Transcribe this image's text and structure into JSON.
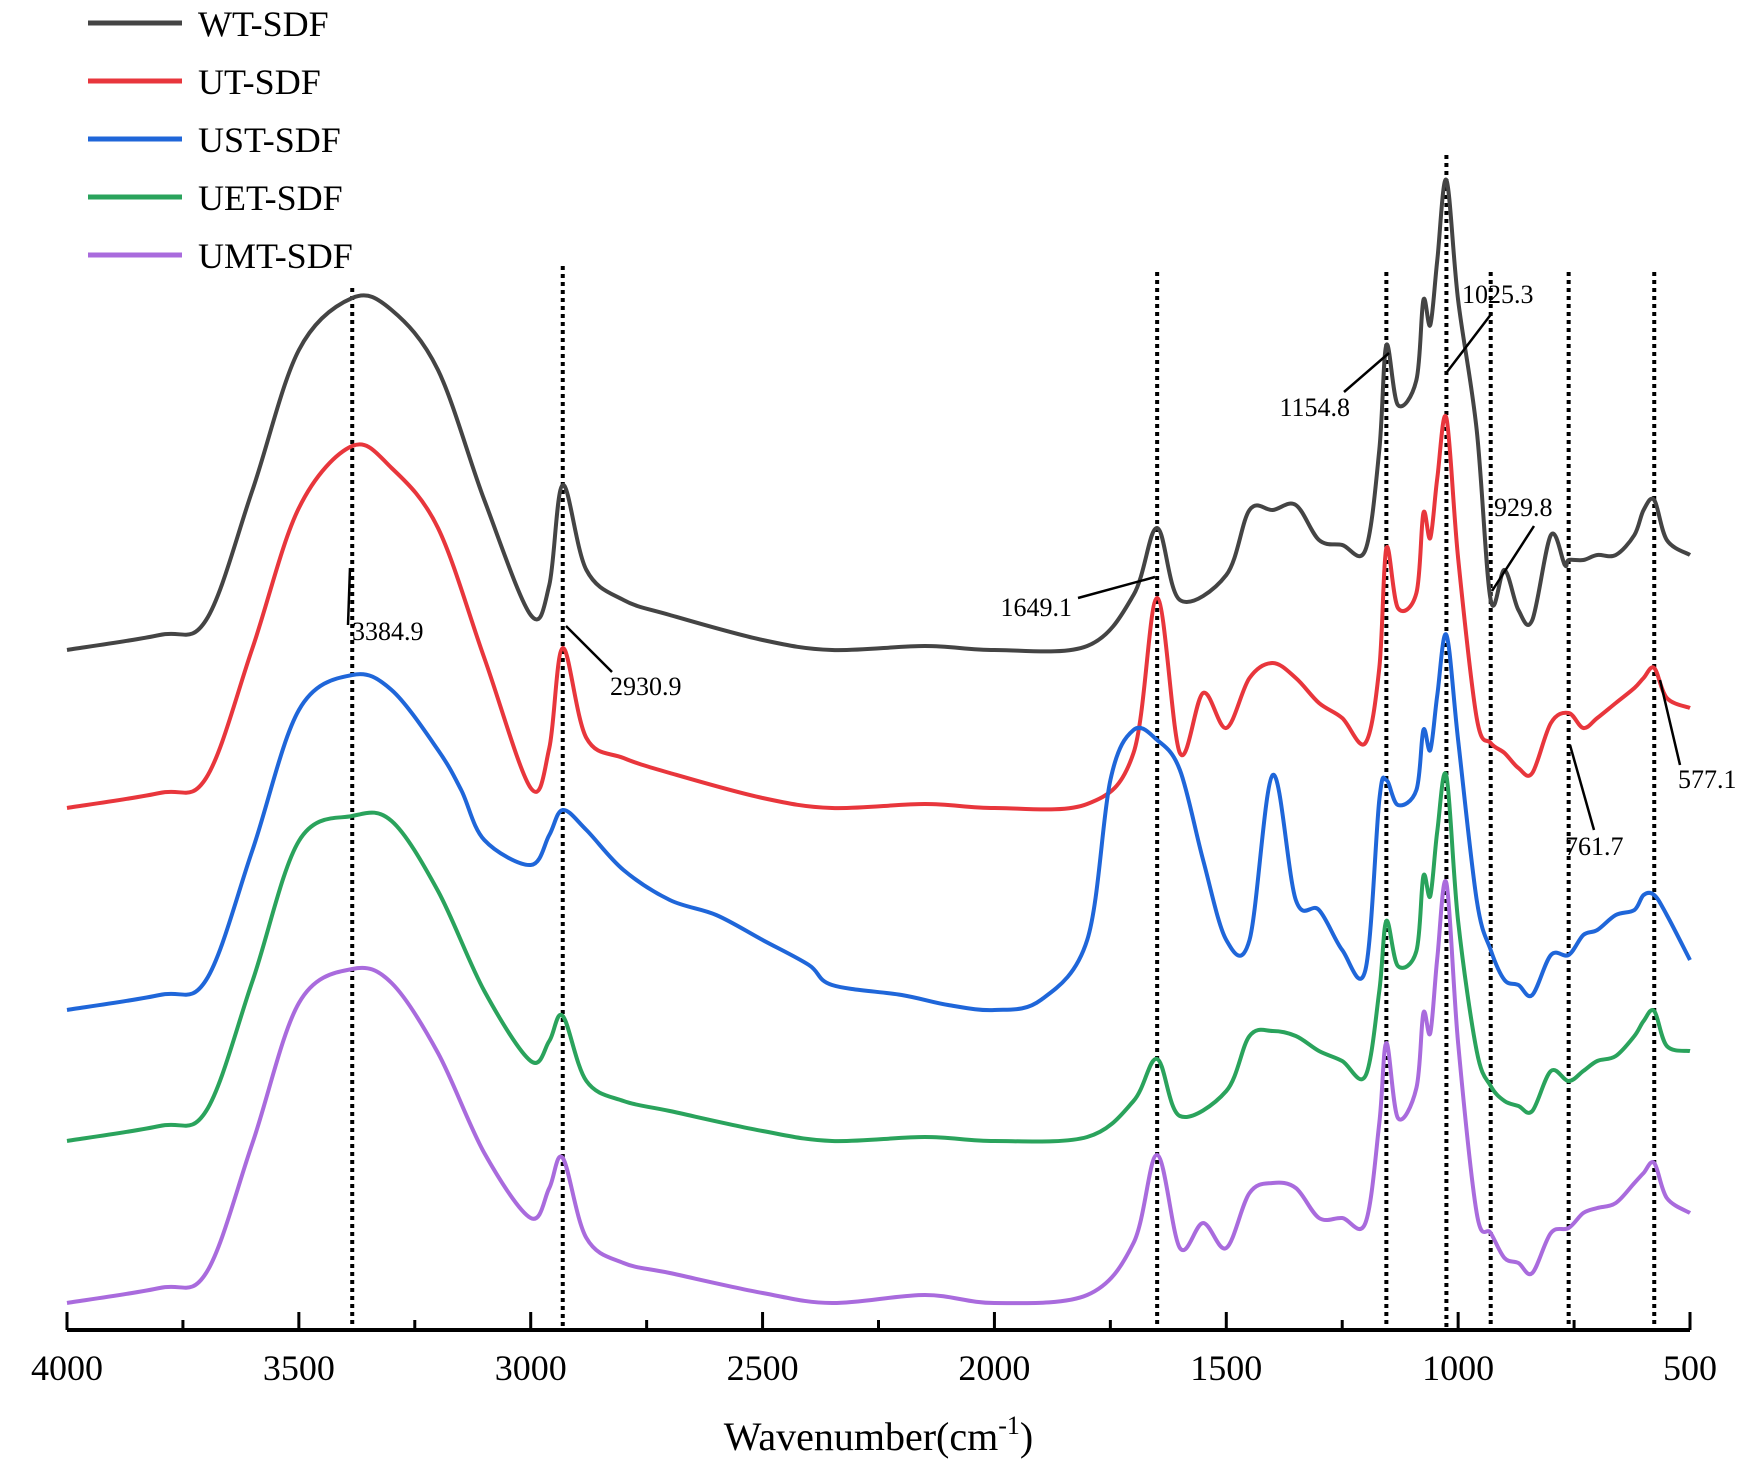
{
  "chart_data": {
    "type": "line",
    "title": "",
    "xlabel": "Wavenumber(cm",
    "xlabel_sup": "-1",
    "xlabel_end": ")",
    "ylabel": "",
    "xlim": [
      4000,
      500
    ],
    "x_ticks": [
      4000,
      3500,
      3000,
      2500,
      2000,
      1500,
      1000,
      500
    ],
    "legend_position": "top-left",
    "series": [
      {
        "name": "WT-SDF",
        "color": "#444444",
        "level": 0.0,
        "offset": 0,
        "points": [
          [
            4000,
            0
          ],
          [
            3800,
            15
          ],
          [
            3700,
            30
          ],
          [
            3600,
            160
          ],
          [
            3500,
            300
          ],
          [
            3384.9,
            352
          ],
          [
            3300,
            340
          ],
          [
            3200,
            280
          ],
          [
            3100,
            150
          ],
          [
            3000,
            35
          ],
          [
            2960,
            65
          ],
          [
            2930.9,
            165
          ],
          [
            2880,
            80
          ],
          [
            2800,
            50
          ],
          [
            2700,
            35
          ],
          [
            2500,
            10
          ],
          [
            2350,
            0
          ],
          [
            2150,
            4
          ],
          [
            2000,
            0
          ],
          [
            1800,
            4
          ],
          [
            1700,
            55
          ],
          [
            1649.1,
            122
          ],
          [
            1600,
            50
          ],
          [
            1500,
            75
          ],
          [
            1450,
            140
          ],
          [
            1400,
            140
          ],
          [
            1350,
            145
          ],
          [
            1300,
            110
          ],
          [
            1250,
            105
          ],
          [
            1200,
            100
          ],
          [
            1170,
            200
          ],
          [
            1154.8,
            305
          ],
          [
            1130,
            245
          ],
          [
            1090,
            270
          ],
          [
            1075,
            350
          ],
          [
            1060,
            325
          ],
          [
            1045,
            390
          ],
          [
            1025.3,
            470
          ],
          [
            1000,
            350
          ],
          [
            960,
            220
          ],
          [
            929.8,
            50
          ],
          [
            900,
            80
          ],
          [
            870,
            40
          ],
          [
            840,
            30
          ],
          [
            800,
            115
          ],
          [
            770,
            85
          ],
          [
            761.7,
            90
          ],
          [
            730,
            90
          ],
          [
            700,
            95
          ],
          [
            660,
            95
          ],
          [
            620,
            115
          ],
          [
            600,
            140
          ],
          [
            577.1,
            150
          ],
          [
            550,
            110
          ],
          [
            500,
            95
          ]
        ]
      },
      {
        "name": "UT-SDF",
        "color": "#e8363c",
        "level": 0.0,
        "offset": 160,
        "points": [
          [
            4000,
            0
          ],
          [
            3800,
            15
          ],
          [
            3700,
            30
          ],
          [
            3600,
            160
          ],
          [
            3500,
            300
          ],
          [
            3384.9,
            362
          ],
          [
            3300,
            340
          ],
          [
            3200,
            280
          ],
          [
            3100,
            150
          ],
          [
            3000,
            20
          ],
          [
            2960,
            60
          ],
          [
            2930.9,
            160
          ],
          [
            2880,
            70
          ],
          [
            2800,
            50
          ],
          [
            2700,
            35
          ],
          [
            2500,
            10
          ],
          [
            2350,
            0
          ],
          [
            2150,
            4
          ],
          [
            2000,
            0
          ],
          [
            1800,
            4
          ],
          [
            1700,
            55
          ],
          [
            1649.1,
            210
          ],
          [
            1600,
            55
          ],
          [
            1550,
            115
          ],
          [
            1500,
            80
          ],
          [
            1450,
            130
          ],
          [
            1400,
            145
          ],
          [
            1350,
            130
          ],
          [
            1300,
            105
          ],
          [
            1250,
            90
          ],
          [
            1200,
            65
          ],
          [
            1170,
            140
          ],
          [
            1154.8,
            260
          ],
          [
            1130,
            200
          ],
          [
            1090,
            215
          ],
          [
            1075,
            295
          ],
          [
            1060,
            270
          ],
          [
            1045,
            330
          ],
          [
            1025.3,
            390
          ],
          [
            1000,
            250
          ],
          [
            960,
            90
          ],
          [
            929.8,
            65
          ],
          [
            900,
            55
          ],
          [
            870,
            40
          ],
          [
            840,
            35
          ],
          [
            800,
            85
          ],
          [
            761.7,
            95
          ],
          [
            730,
            80
          ],
          [
            700,
            90
          ],
          [
            660,
            105
          ],
          [
            620,
            120
          ],
          [
            600,
            130
          ],
          [
            577.1,
            140
          ],
          [
            550,
            110
          ],
          [
            500,
            100
          ]
        ]
      },
      {
        "name": "UST-SDF",
        "color": "#1f66d9",
        "level": 0.0,
        "offset": 395,
        "points": [
          [
            4000,
            0
          ],
          [
            3800,
            15
          ],
          [
            3700,
            30
          ],
          [
            3600,
            160
          ],
          [
            3500,
            300
          ],
          [
            3384.9,
            335
          ],
          [
            3300,
            320
          ],
          [
            3200,
            260
          ],
          [
            3150,
            220
          ],
          [
            3100,
            170
          ],
          [
            3000,
            145
          ],
          [
            2960,
            175
          ],
          [
            2930.9,
            200
          ],
          [
            2880,
            180
          ],
          [
            2800,
            140
          ],
          [
            2700,
            110
          ],
          [
            2600,
            95
          ],
          [
            2500,
            70
          ],
          [
            2400,
            45
          ],
          [
            2350,
            25
          ],
          [
            2200,
            15
          ],
          [
            2100,
            5
          ],
          [
            2000,
            0
          ],
          [
            1900,
            10
          ],
          [
            1800,
            70
          ],
          [
            1750,
            230
          ],
          [
            1700,
            280
          ],
          [
            1649.1,
            270
          ],
          [
            1600,
            240
          ],
          [
            1550,
            150
          ],
          [
            1500,
            70
          ],
          [
            1450,
            70
          ],
          [
            1400,
            235
          ],
          [
            1350,
            110
          ],
          [
            1300,
            100
          ],
          [
            1250,
            60
          ],
          [
            1200,
            40
          ],
          [
            1170,
            210
          ],
          [
            1154.8,
            230
          ],
          [
            1130,
            205
          ],
          [
            1090,
            220
          ],
          [
            1075,
            280
          ],
          [
            1060,
            260
          ],
          [
            1045,
            315
          ],
          [
            1025.3,
            375
          ],
          [
            1000,
            270
          ],
          [
            960,
            110
          ],
          [
            929.8,
            60
          ],
          [
            900,
            30
          ],
          [
            870,
            25
          ],
          [
            840,
            15
          ],
          [
            800,
            55
          ],
          [
            761.7,
            55
          ],
          [
            730,
            75
          ],
          [
            700,
            80
          ],
          [
            660,
            95
          ],
          [
            620,
            100
          ],
          [
            600,
            115
          ],
          [
            577.1,
            115
          ],
          [
            550,
            95
          ],
          [
            500,
            50
          ]
        ]
      },
      {
        "name": "UET-SDF",
        "color": "#2aa35c",
        "level": 0.0,
        "offset": 860,
        "points": [
          [
            4000,
            0
          ],
          [
            3800,
            15
          ],
          [
            3700,
            30
          ],
          [
            3600,
            160
          ],
          [
            3500,
            300
          ],
          [
            3384.9,
            325
          ],
          [
            3300,
            320
          ],
          [
            3200,
            250
          ],
          [
            3100,
            150
          ],
          [
            3000,
            80
          ],
          [
            2960,
            100
          ],
          [
            2930.9,
            125
          ],
          [
            2880,
            60
          ],
          [
            2800,
            40
          ],
          [
            2700,
            30
          ],
          [
            2500,
            10
          ],
          [
            2350,
            0
          ],
          [
            2150,
            4
          ],
          [
            2000,
            0
          ],
          [
            1800,
            4
          ],
          [
            1700,
            40
          ],
          [
            1649.1,
            82
          ],
          [
            1600,
            25
          ],
          [
            1500,
            50
          ],
          [
            1450,
            105
          ],
          [
            1400,
            110
          ],
          [
            1350,
            105
          ],
          [
            1300,
            90
          ],
          [
            1250,
            80
          ],
          [
            1200,
            65
          ],
          [
            1170,
            150
          ],
          [
            1154.8,
            220
          ],
          [
            1130,
            175
          ],
          [
            1090,
            190
          ],
          [
            1075,
            265
          ],
          [
            1060,
            245
          ],
          [
            1045,
            310
          ],
          [
            1025.3,
            365
          ],
          [
            1000,
            220
          ],
          [
            960,
            90
          ],
          [
            929.8,
            55
          ],
          [
            900,
            40
          ],
          [
            870,
            35
          ],
          [
            840,
            30
          ],
          [
            800,
            70
          ],
          [
            761.7,
            60
          ],
          [
            730,
            70
          ],
          [
            700,
            80
          ],
          [
            660,
            85
          ],
          [
            620,
            105
          ],
          [
            600,
            120
          ],
          [
            577.1,
            130
          ],
          [
            550,
            95
          ],
          [
            500,
            90
          ]
        ]
      },
      {
        "name": "UMT-SDF",
        "color": "#a96bdd",
        "level": 0.0,
        "offset": 860,
        "points": [
          [
            4000,
            0
          ],
          [
            3800,
            15
          ],
          [
            3700,
            30
          ],
          [
            3600,
            160
          ],
          [
            3500,
            300
          ],
          [
            3384.9,
            334
          ],
          [
            3300,
            320
          ],
          [
            3200,
            250
          ],
          [
            3100,
            150
          ],
          [
            3000,
            85
          ],
          [
            2960,
            115
          ],
          [
            2930.9,
            145
          ],
          [
            2880,
            65
          ],
          [
            2800,
            40
          ],
          [
            2700,
            30
          ],
          [
            2500,
            10
          ],
          [
            2350,
            0
          ],
          [
            2150,
            8
          ],
          [
            2000,
            0
          ],
          [
            1800,
            8
          ],
          [
            1700,
            60
          ],
          [
            1649.1,
            148
          ],
          [
            1600,
            55
          ],
          [
            1550,
            80
          ],
          [
            1500,
            55
          ],
          [
            1450,
            110
          ],
          [
            1400,
            120
          ],
          [
            1350,
            115
          ],
          [
            1300,
            85
          ],
          [
            1250,
            85
          ],
          [
            1200,
            80
          ],
          [
            1170,
            180
          ],
          [
            1154.8,
            260
          ],
          [
            1130,
            185
          ],
          [
            1090,
            215
          ],
          [
            1075,
            290
          ],
          [
            1060,
            270
          ],
          [
            1045,
            345
          ],
          [
            1025.3,
            420
          ],
          [
            1000,
            260
          ],
          [
            960,
            90
          ],
          [
            929.8,
            70
          ],
          [
            900,
            45
          ],
          [
            870,
            40
          ],
          [
            840,
            30
          ],
          [
            800,
            70
          ],
          [
            761.7,
            75
          ],
          [
            730,
            90
          ],
          [
            700,
            95
          ],
          [
            660,
            100
          ],
          [
            620,
            120
          ],
          [
            600,
            130
          ],
          [
            577.1,
            140
          ],
          [
            550,
            105
          ],
          [
            500,
            90
          ]
        ]
      }
    ],
    "reference_lines": [
      3384.9,
      2930.9,
      1649.1,
      1154.8,
      1025.3,
      929.8,
      761.7,
      577.1
    ],
    "annotations": [
      {
        "text": "3384.9"
      },
      {
        "text": "2930.9"
      },
      {
        "text": "1649.1"
      },
      {
        "text": "1154.8"
      },
      {
        "text": "1025.3"
      },
      {
        "text": "929.8"
      },
      {
        "text": "761.7"
      },
      {
        "text": "577.1"
      }
    ]
  }
}
